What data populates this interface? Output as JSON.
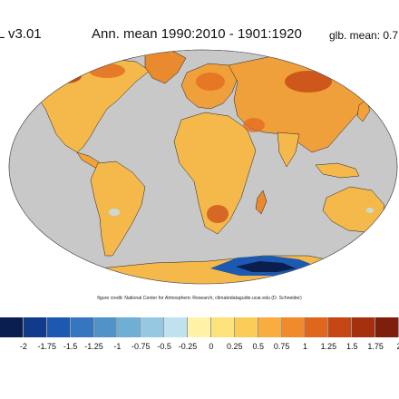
{
  "header": {
    "left_title": "L v3.01",
    "center_title": "Ann. mean 1990:2010 - 1901:1920",
    "right_title": "glb. mean: 0.7"
  },
  "credit": "figure credit: National Center for Atmospheric Research, climatedataguide.ucar.edu (D. Schneider)",
  "colorbar": {
    "colors": [
      "#0a1f4d",
      "#123a8a",
      "#1c59b0",
      "#3477c0",
      "#4f93c9",
      "#6fafd5",
      "#95c9e2",
      "#bfe2ee",
      "#fff3a8",
      "#fde27c",
      "#fbcb57",
      "#f8ad3e",
      "#f08a2b",
      "#e1661d",
      "#c64614",
      "#a5300e",
      "#7d1f0a"
    ],
    "ticks": [
      "-2",
      "-1.75",
      "-1.5",
      "-1.25",
      "-1",
      "-0.75",
      "-0.5",
      "-0.25",
      "0",
      "0.25",
      "0.5",
      "0.75",
      "1",
      "1.25",
      "1.5",
      "1.75",
      "2"
    ]
  },
  "map": {
    "ocean_color": "#c8c8c8",
    "land_color": "#f5b84a"
  }
}
